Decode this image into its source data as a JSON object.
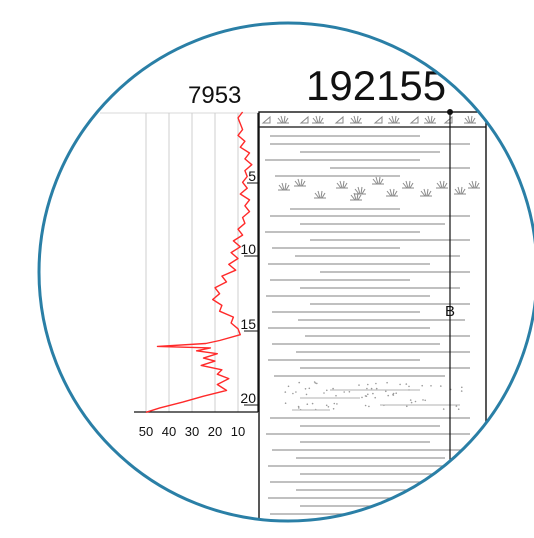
{
  "header": {
    "left_id": "7953",
    "right_id": "192155"
  },
  "unit_label": "B",
  "colors": {
    "circle": "#2a7fa6",
    "curve": "#ff2a2a",
    "ink": "#111111",
    "lines": "#9a9a9a",
    "grid": "#cfcfcf"
  },
  "depth_ticks": [
    "5",
    "10",
    "15",
    "20"
  ],
  "x_ticks": [
    "50",
    "40",
    "30",
    "20",
    "10"
  ],
  "chart_data": {
    "type": "line",
    "x_ticks": [
      50,
      40,
      30,
      20,
      10
    ],
    "y_ticks": [
      5,
      10,
      15,
      20
    ],
    "depth_range": [
      0,
      20.5
    ],
    "series": [
      {
        "values_depth_vs_x": [
          [
            0.0,
            8
          ],
          [
            0.4,
            10
          ],
          [
            0.8,
            9
          ],
          [
            1.2,
            8
          ],
          [
            1.6,
            10
          ],
          [
            2.0,
            7
          ],
          [
            2.4,
            9
          ],
          [
            2.8,
            5
          ],
          [
            3.2,
            7
          ],
          [
            3.6,
            4
          ],
          [
            4.0,
            7
          ],
          [
            4.4,
            6
          ],
          [
            4.8,
            8
          ],
          [
            5.2,
            6
          ],
          [
            5.6,
            9
          ],
          [
            6.0,
            5
          ],
          [
            6.4,
            7
          ],
          [
            6.8,
            5
          ],
          [
            7.2,
            8
          ],
          [
            7.6,
            7
          ],
          [
            8.0,
            10
          ],
          [
            8.4,
            8
          ],
          [
            8.8,
            12
          ],
          [
            9.2,
            9
          ],
          [
            9.6,
            13
          ],
          [
            10.0,
            10
          ],
          [
            10.4,
            14
          ],
          [
            10.8,
            11
          ],
          [
            11.2,
            17
          ],
          [
            11.6,
            15
          ],
          [
            12.0,
            20
          ],
          [
            12.4,
            18
          ],
          [
            12.8,
            21
          ],
          [
            13.2,
            17
          ],
          [
            13.6,
            18
          ],
          [
            14.0,
            12
          ],
          [
            14.4,
            13
          ],
          [
            14.8,
            10
          ],
          [
            15.2,
            9
          ],
          [
            15.6,
            18
          ],
          [
            15.8,
            24
          ],
          [
            16.0,
            45
          ],
          [
            16.1,
            22
          ],
          [
            16.3,
            28
          ],
          [
            16.5,
            19
          ],
          [
            16.8,
            25
          ],
          [
            17.0,
            20
          ],
          [
            17.3,
            26
          ],
          [
            17.6,
            17
          ],
          [
            17.9,
            19
          ],
          [
            18.2,
            14
          ],
          [
            18.6,
            19
          ],
          [
            19.0,
            15
          ],
          [
            19.4,
            25
          ],
          [
            19.8,
            34
          ],
          [
            20.2,
            44
          ],
          [
            20.5,
            50
          ]
        ]
      }
    ]
  }
}
